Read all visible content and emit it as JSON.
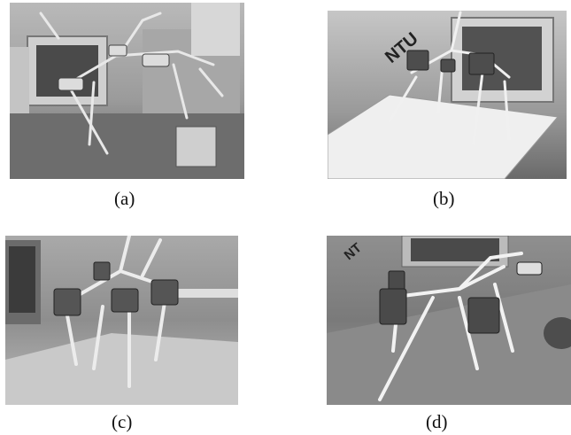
{
  "figure": {
    "panels": [
      {
        "id": "a",
        "caption": "(a)",
        "image_label": ""
      },
      {
        "id": "b",
        "caption": "(b)",
        "image_label": "NTU"
      },
      {
        "id": "c",
        "caption": "(c)",
        "image_label": ""
      },
      {
        "id": "d",
        "caption": "(d)",
        "image_label": "NT"
      }
    ]
  }
}
